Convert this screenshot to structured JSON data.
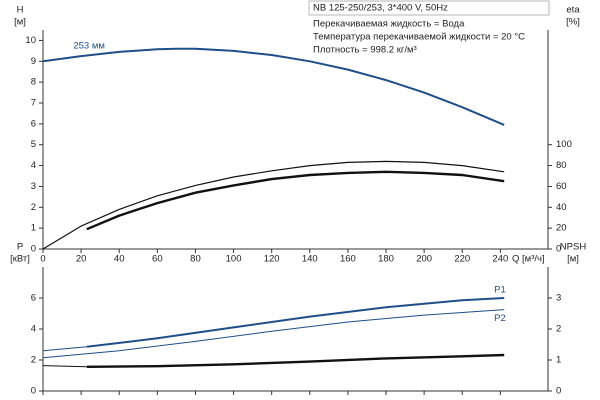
{
  "header": {
    "title": "NB 125-250/253, 3*400 V, 50Hz",
    "lines": [
      "Перекачиваемая жидкость = Вода",
      "Температура перекачиваемой жидкости = 20 °C",
      "Плотность = 998.2 кг/м³"
    ]
  },
  "chart_data": [
    {
      "type": "line",
      "ylabel": [
        "H",
        "[м]"
      ],
      "y2label": [
        "eta",
        "[%]"
      ],
      "xlabel": "Q [м³/ч]",
      "xlim": [
        0,
        265
      ],
      "xticks": [
        0,
        20,
        40,
        60,
        80,
        100,
        120,
        140,
        160,
        180,
        200,
        220,
        240
      ],
      "ylim": [
        0,
        10.5
      ],
      "yticks": [
        0,
        1,
        2,
        3,
        4,
        5,
        6,
        7,
        8,
        9,
        10
      ],
      "y2lim": [
        0,
        210
      ],
      "y2ticks": [
        0,
        20,
        40,
        60,
        80,
        100
      ],
      "series": [
        {
          "name": "253 мм",
          "color": "#1f4e89",
          "width": 2,
          "x": [
            0,
            20,
            40,
            60,
            70,
            80,
            100,
            120,
            140,
            160,
            180,
            200,
            220,
            242
          ],
          "values": [
            9.0,
            9.25,
            9.45,
            9.58,
            9.6,
            9.6,
            9.5,
            9.3,
            9.0,
            8.6,
            8.1,
            7.5,
            6.8,
            5.95
          ]
        },
        {
          "color": "#111111",
          "width": 1.2,
          "axis": "y2",
          "x": [
            0,
            20,
            40,
            60,
            80,
            100,
            120,
            140,
            160,
            180,
            200,
            220,
            242
          ],
          "values": [
            0,
            22,
            38,
            51,
            61,
            69,
            75,
            80,
            83,
            84,
            83,
            80,
            74
          ]
        },
        {
          "color": "#111111",
          "width": 2.4,
          "axis": "y2",
          "x": [
            23,
            40,
            60,
            80,
            100,
            120,
            140,
            160,
            180,
            200,
            220,
            242
          ],
          "values": [
            19,
            32,
            44,
            54,
            61,
            67,
            71,
            73,
            74,
            73,
            71,
            65
          ]
        }
      ]
    },
    {
      "type": "line",
      "ylabel": [
        "P",
        "[кВт]"
      ],
      "y2label": [
        "NPSH",
        "[м]"
      ],
      "xlim": [
        0,
        265
      ],
      "xticks": [
        0,
        20,
        40,
        60,
        80,
        100,
        120,
        140,
        160,
        180,
        200,
        220,
        240
      ],
      "ylim": [
        0,
        8
      ],
      "yticks": [
        0,
        2,
        4,
        6
      ],
      "y2lim": [
        0,
        4
      ],
      "y2ticks": [
        0,
        1,
        2,
        3
      ],
      "series": [
        {
          "color": "#1f4e89",
          "width": 1,
          "x": [
            0,
            23
          ],
          "values": [
            2.6,
            2.85
          ]
        },
        {
          "name": "P1",
          "color": "#1f4e89",
          "width": 2,
          "x": [
            23,
            60,
            100,
            140,
            180,
            220,
            242
          ],
          "values": [
            2.85,
            3.4,
            4.1,
            4.8,
            5.4,
            5.85,
            6.0
          ]
        },
        {
          "name": "P2",
          "color": "#1f4e89",
          "width": 1,
          "x": [
            0,
            40,
            80,
            120,
            160,
            200,
            242
          ],
          "values": [
            2.15,
            2.6,
            3.2,
            3.85,
            4.45,
            4.9,
            5.25
          ]
        },
        {
          "color": "#111111",
          "width": 1,
          "axis": "y2",
          "x": [
            0,
            23
          ],
          "values": [
            0.82,
            0.78
          ]
        },
        {
          "color": "#111111",
          "width": 2.4,
          "axis": "y2",
          "x": [
            23,
            60,
            100,
            140,
            180,
            220,
            242
          ],
          "values": [
            0.78,
            0.8,
            0.86,
            0.95,
            1.05,
            1.12,
            1.16
          ]
        }
      ]
    }
  ]
}
